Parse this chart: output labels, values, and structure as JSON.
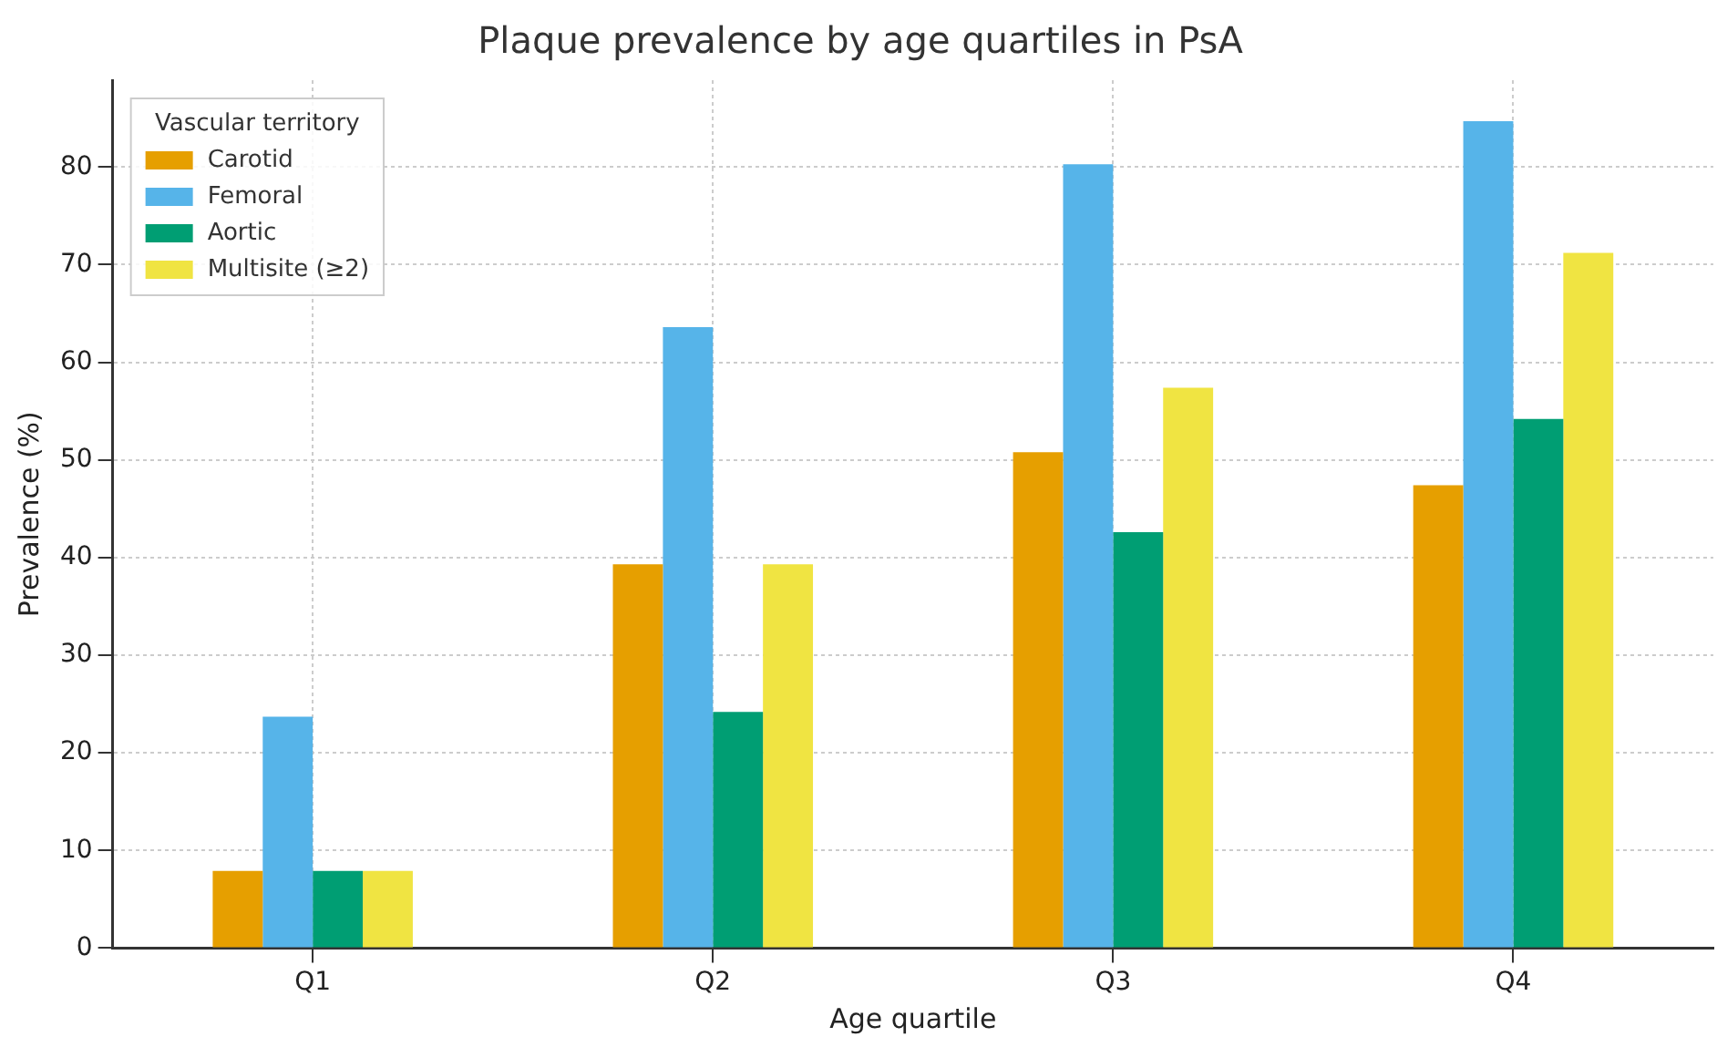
{
  "chart_data": {
    "type": "bar",
    "title": "Plaque prevalence by age quartiles in PsA",
    "xlabel": "Age quartile",
    "ylabel": "Prevalence (%)",
    "legend_title": "Vascular territory",
    "categories": [
      "Q1",
      "Q2",
      "Q3",
      "Q4"
    ],
    "series": [
      {
        "name": "Carotid",
        "color": "#e69f00",
        "values": [
          7.9,
          39.3,
          50.8,
          47.4
        ]
      },
      {
        "name": "Femoral",
        "color": "#56b4e9",
        "values": [
          23.7,
          63.6,
          80.3,
          84.7
        ]
      },
      {
        "name": "Aortic",
        "color": "#009e73",
        "values": [
          7.9,
          24.2,
          42.6,
          54.2
        ]
      },
      {
        "name": "Multisite (≥2)",
        "color": "#f0e442",
        "values": [
          7.9,
          39.3,
          57.4,
          71.2
        ]
      }
    ],
    "ylim": [
      0,
      88.9
    ],
    "yticks": [
      0,
      10,
      20,
      30,
      40,
      50,
      60,
      70,
      80
    ],
    "grid": true,
    "legend": "top left"
  }
}
